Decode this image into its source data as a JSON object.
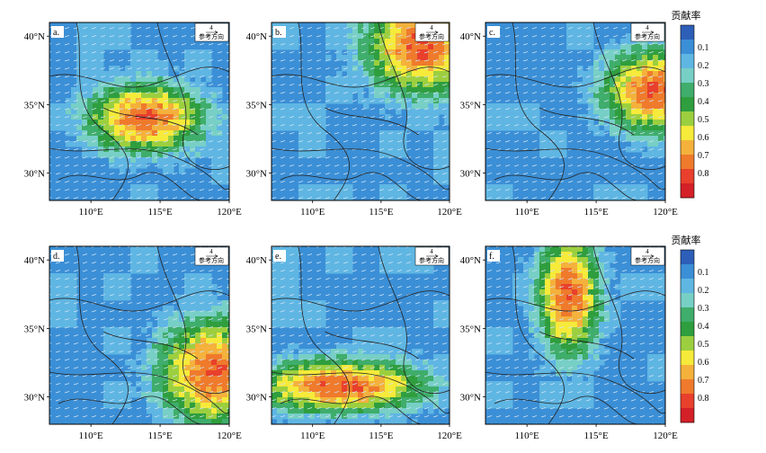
{
  "chart_data": {
    "type": "heatmap",
    "colorbar": {
      "title": "贡献率",
      "ticks": [
        "0.1",
        "0.2",
        "0.3",
        "0.4",
        "0.5",
        "0.6",
        "0.7",
        "0.8"
      ],
      "colors": [
        "#2d5fb8",
        "#3b8fd6",
        "#5fb6e3",
        "#77cfc6",
        "#3fad6b",
        "#2f9e3e",
        "#9ccf3f",
        "#f6ea3a",
        "#f4b13c",
        "#ef7a2c",
        "#e8402c",
        "#d42027"
      ]
    },
    "x_ticks": [
      "110°E",
      "115°E",
      "120°E"
    ],
    "y_ticks": [
      "40°N",
      "35°N",
      "30°N"
    ],
    "lon_range": [
      107,
      120
    ],
    "lat_range": [
      28,
      41
    ],
    "reference_vector": {
      "value": "4",
      "label": "参考方向"
    },
    "panels": [
      {
        "label": "a.",
        "hotspot": {
          "lon": 114.0,
          "lat": 34.0,
          "rx": 3.0,
          "ry": 1.8,
          "peak": 0.8
        }
      },
      {
        "label": "b.",
        "hotspot": {
          "lon": 118.0,
          "lat": 39.2,
          "rx": 3.0,
          "ry": 2.5,
          "peak": 0.8
        }
      },
      {
        "label": "c.",
        "hotspot": {
          "lon": 119.2,
          "lat": 36.0,
          "rx": 2.6,
          "ry": 2.2,
          "peak": 0.8
        }
      },
      {
        "label": "d.",
        "hotspot": {
          "lon": 118.8,
          "lat": 31.8,
          "rx": 2.8,
          "ry": 2.8,
          "peak": 0.8
        }
      },
      {
        "label": "e.",
        "hotspot": {
          "lon": 112.0,
          "lat": 30.8,
          "rx": 4.5,
          "ry": 1.4,
          "peak": 0.8
        }
      },
      {
        "label": "f.",
        "hotspot": {
          "lon": 113.0,
          "lat": 37.5,
          "rx": 1.6,
          "ry": 3.2,
          "peak": 0.8
        }
      }
    ]
  }
}
